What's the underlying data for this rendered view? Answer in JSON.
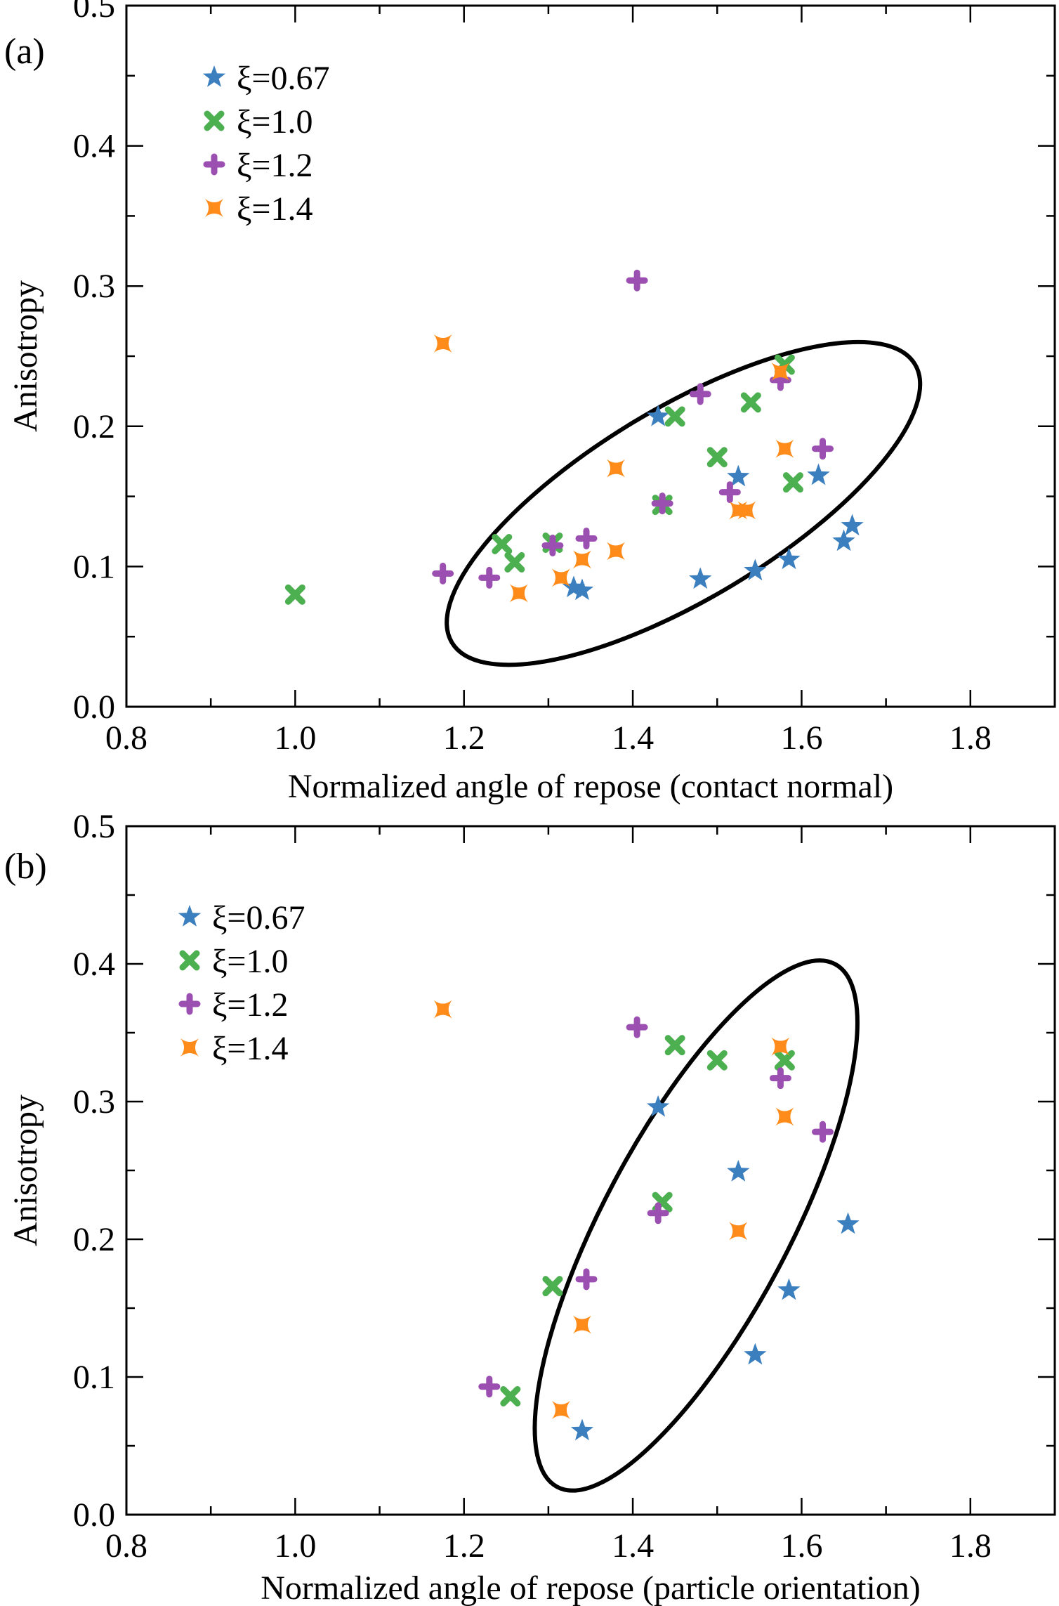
{
  "colors": {
    "xi_0_67": "#3b7fbf",
    "xi_1_0": "#4caf50",
    "xi_1_2": "#9b4fb0",
    "xi_1_4": "#ff8c1a",
    "axis": "#000000",
    "ellipse": "#000000"
  },
  "chart_data": [
    {
      "type": "scatter",
      "panel_label": "(a)",
      "xlabel": "Normalized angle of repose (contact normal)",
      "ylabel": "Anisotropy",
      "xlim": [
        0.8,
        1.9
      ],
      "ylim": [
        0.0,
        0.5
      ],
      "xticks": [
        "0.8",
        "1.0",
        "1.2",
        "1.4",
        "1.6",
        "1.8"
      ],
      "yticks": [
        "0.0",
        "0.1",
        "0.2",
        "0.3",
        "0.4",
        "0.5"
      ],
      "legend_position": "top-left",
      "grid": false,
      "ellipse": {
        "center": [
          1.46,
          0.145
        ],
        "rx": 0.32,
        "ry": 0.068,
        "angle_deg": -31
      },
      "series": [
        {
          "name": "ξ=0.67",
          "marker": "star",
          "color_key": "xi_0_67",
          "points": [
            [
              1.43,
              0.207
            ],
            [
              1.33,
              0.085
            ],
            [
              1.34,
              0.083
            ],
            [
              1.48,
              0.091
            ],
            [
              1.525,
              0.164
            ],
            [
              1.545,
              0.097
            ],
            [
              1.585,
              0.105
            ],
            [
              1.62,
              0.165
            ],
            [
              1.65,
              0.118
            ],
            [
              1.66,
              0.129
            ]
          ]
        },
        {
          "name": "ξ=1.0",
          "marker": "x",
          "color_key": "xi_1_0",
          "points": [
            [
              1.0,
              0.08
            ],
            [
              1.245,
              0.116
            ],
            [
              1.26,
              0.103
            ],
            [
              1.305,
              0.117
            ],
            [
              1.435,
              0.144
            ],
            [
              1.45,
              0.207
            ],
            [
              1.5,
              0.178
            ],
            [
              1.54,
              0.217
            ],
            [
              1.58,
              0.244
            ],
            [
              1.59,
              0.16
            ]
          ]
        },
        {
          "name": "ξ=1.2",
          "marker": "plus",
          "color_key": "xi_1_2",
          "points": [
            [
              1.175,
              0.095
            ],
            [
              1.23,
              0.092
            ],
            [
              1.305,
              0.115
            ],
            [
              1.345,
              0.12
            ],
            [
              1.405,
              0.304
            ],
            [
              1.435,
              0.145
            ],
            [
              1.48,
              0.223
            ],
            [
              1.515,
              0.153
            ],
            [
              1.575,
              0.233
            ],
            [
              1.625,
              0.184
            ]
          ]
        },
        {
          "name": "ξ=1.4",
          "marker": "x4",
          "color_key": "xi_1_4",
          "points": [
            [
              1.175,
              0.259
            ],
            [
              1.265,
              0.081
            ],
            [
              1.315,
              0.092
            ],
            [
              1.34,
              0.105
            ],
            [
              1.38,
              0.17
            ],
            [
              1.38,
              0.111
            ],
            [
              1.525,
              0.14
            ],
            [
              1.535,
              0.14
            ],
            [
              1.575,
              0.239
            ],
            [
              1.58,
              0.184
            ]
          ]
        }
      ]
    },
    {
      "type": "scatter",
      "panel_label": "(b)",
      "xlabel": "Normalized angle of repose (particle orientation)",
      "ylabel": "Anisotropy",
      "xlim": [
        0.8,
        1.9
      ],
      "ylim": [
        0.0,
        0.5
      ],
      "xticks": [
        "0.8",
        "1.0",
        "1.2",
        "1.4",
        "1.6",
        "1.8"
      ],
      "yticks": [
        "0.0",
        "0.1",
        "0.2",
        "0.3",
        "0.4",
        "0.5"
      ],
      "legend_position": "top-left",
      "grid": false,
      "ellipse": {
        "center": [
          1.475,
          0.21
        ],
        "rx": 0.11,
        "ry": 0.215,
        "angle_deg": 28
      },
      "series": [
        {
          "name": "ξ=0.67",
          "marker": "star",
          "color_key": "xi_0_67",
          "points": [
            [
              1.43,
              0.296
            ],
            [
              1.34,
              0.061
            ],
            [
              1.525,
              0.249
            ],
            [
              1.545,
              0.116
            ],
            [
              1.585,
              0.163
            ],
            [
              1.655,
              0.211
            ]
          ]
        },
        {
          "name": "ξ=1.0",
          "marker": "x",
          "color_key": "xi_1_0",
          "points": [
            [
              1.255,
              0.086
            ],
            [
              1.305,
              0.166
            ],
            [
              1.435,
              0.227
            ],
            [
              1.45,
              0.341
            ],
            [
              1.5,
              0.33
            ],
            [
              1.58,
              0.33
            ]
          ]
        },
        {
          "name": "ξ=1.2",
          "marker": "plus",
          "color_key": "xi_1_2",
          "points": [
            [
              1.23,
              0.093
            ],
            [
              1.345,
              0.171
            ],
            [
              1.405,
              0.354
            ],
            [
              1.43,
              0.219
            ],
            [
              1.575,
              0.317
            ],
            [
              1.625,
              0.278
            ]
          ]
        },
        {
          "name": "ξ=1.4",
          "marker": "x4",
          "color_key": "xi_1_4",
          "points": [
            [
              1.175,
              0.367
            ],
            [
              1.315,
              0.076
            ],
            [
              1.34,
              0.138
            ],
            [
              1.525,
              0.206
            ],
            [
              1.575,
              0.34
            ],
            [
              1.58,
              0.289
            ]
          ]
        }
      ]
    }
  ]
}
